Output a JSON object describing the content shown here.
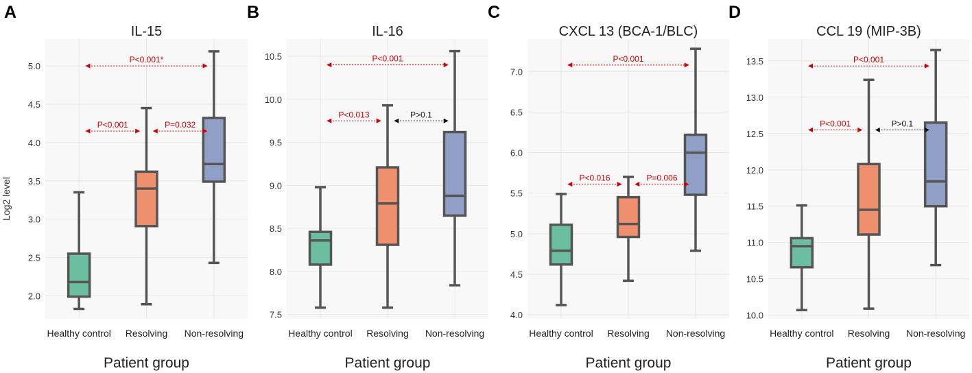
{
  "figure": {
    "ylabel": "Log2 level",
    "colors": {
      "healthy": "#6bbfa0",
      "resolving": "#ee8f6d",
      "nonresolving": "#8f9fc6",
      "box_edge": "#555555",
      "panel_bg": "#f8f8f8",
      "grid": "#e6e6e6",
      "annotation_red": "#d00000",
      "annotation_black": "#111111"
    }
  },
  "chart_data": [
    {
      "panel_letter": "A",
      "type": "box",
      "title": "IL-15",
      "xlabel": "Patient group",
      "ylabel": "Log2 level",
      "categories": [
        "Healthy control",
        "Resolving",
        "Non-resolving"
      ],
      "ylim": [
        1.7,
        5.35
      ],
      "yticks": [
        2.0,
        2.5,
        3.0,
        3.5,
        4.0,
        4.5,
        5.0
      ],
      "ytick_labels": [
        "2.0",
        "2.5",
        "3.0",
        "3.5",
        "4.0",
        "4.5",
        "5.0"
      ],
      "boxes": [
        {
          "min": 1.83,
          "q1": 1.99,
          "median": 2.18,
          "q3": 2.55,
          "max": 3.35
        },
        {
          "min": 1.89,
          "q1": 2.91,
          "median": 3.4,
          "q3": 3.62,
          "max": 4.45
        },
        {
          "min": 2.43,
          "q1": 3.49,
          "median": 3.72,
          "q3": 4.32,
          "max": 5.19
        }
      ],
      "comparisons": [
        {
          "from": 0,
          "to": 1,
          "y": 4.15,
          "label": "P<0.001",
          "color": "red"
        },
        {
          "from": 1,
          "to": 2,
          "y": 4.15,
          "label": "P=0.032",
          "color": "red"
        },
        {
          "from": 0,
          "to": 2,
          "y": 5.0,
          "label": "P<0.001*",
          "color": "red"
        }
      ]
    },
    {
      "panel_letter": "B",
      "type": "box",
      "title": "IL-16",
      "xlabel": "Patient group",
      "ylabel": "",
      "categories": [
        "Healthy control",
        "Resolving",
        "Non-resolving"
      ],
      "ylim": [
        7.45,
        10.7
      ],
      "yticks": [
        7.5,
        8.0,
        8.5,
        9.0,
        9.5,
        10.0,
        10.5
      ],
      "ytick_labels": [
        "7.5",
        "8.0",
        "8.5",
        "9.0",
        "9.5",
        "10.0",
        "10.5"
      ],
      "boxes": [
        {
          "min": 7.58,
          "q1": 8.08,
          "median": 8.36,
          "q3": 8.46,
          "max": 8.98
        },
        {
          "min": 7.58,
          "q1": 8.31,
          "median": 8.79,
          "q3": 9.21,
          "max": 9.93
        },
        {
          "min": 7.84,
          "q1": 8.65,
          "median": 8.88,
          "q3": 9.62,
          "max": 10.56
        }
      ],
      "comparisons": [
        {
          "from": 0,
          "to": 1,
          "y": 9.75,
          "label": "P<0.013",
          "color": "red"
        },
        {
          "from": 1,
          "to": 2,
          "y": 9.75,
          "label": "P>0.1",
          "color": "black"
        },
        {
          "from": 0,
          "to": 2,
          "y": 10.4,
          "label": "P<0.001",
          "color": "red"
        }
      ]
    },
    {
      "panel_letter": "C",
      "type": "box",
      "title": "CXCL 13 (BCA-1/BLC)",
      "xlabel": "Patient group",
      "ylabel": "",
      "categories": [
        "Healthy control",
        "Resolving",
        "Non-resolving"
      ],
      "ylim": [
        3.95,
        7.4
      ],
      "yticks": [
        4.0,
        4.5,
        5.0,
        5.5,
        6.0,
        6.5,
        7.0
      ],
      "ytick_labels": [
        "4.0",
        "4.5",
        "5.0",
        "5.5",
        "6.0",
        "6.5",
        "7.0"
      ],
      "boxes": [
        {
          "min": 4.12,
          "q1": 4.62,
          "median": 4.79,
          "q3": 5.11,
          "max": 5.49
        },
        {
          "min": 4.42,
          "q1": 4.96,
          "median": 5.12,
          "q3": 5.45,
          "max": 5.7
        },
        {
          "min": 4.79,
          "q1": 5.48,
          "median": 6.0,
          "q3": 6.22,
          "max": 7.28
        }
      ],
      "comparisons": [
        {
          "from": 0,
          "to": 1,
          "y": 5.61,
          "label": "P<0.016",
          "color": "red"
        },
        {
          "from": 1,
          "to": 2,
          "y": 5.61,
          "label": "P=0.006",
          "color": "red"
        },
        {
          "from": 0,
          "to": 2,
          "y": 7.08,
          "label": "P<0.001",
          "color": "red"
        }
      ]
    },
    {
      "panel_letter": "D",
      "type": "box",
      "title": "CCL 19 (MIP-3B)",
      "xlabel": "Patient group",
      "ylabel": "",
      "categories": [
        "Healthy control",
        "Resolving",
        "Non-resolving"
      ],
      "ylim": [
        9.95,
        13.8
      ],
      "yticks": [
        10.0,
        10.5,
        11.0,
        11.5,
        12.0,
        12.5,
        13.0,
        13.5
      ],
      "ytick_labels": [
        "10.0",
        "10.5",
        "11.0",
        "11.5",
        "12.0",
        "12.5",
        "13.0",
        "13.5"
      ],
      "boxes": [
        {
          "min": 10.07,
          "q1": 10.66,
          "median": 10.95,
          "q3": 11.06,
          "max": 11.51
        },
        {
          "min": 10.09,
          "q1": 11.11,
          "median": 11.45,
          "q3": 12.08,
          "max": 13.24
        },
        {
          "min": 10.69,
          "q1": 11.5,
          "median": 11.84,
          "q3": 12.65,
          "max": 13.65
        }
      ],
      "comparisons": [
        {
          "from": 0,
          "to": 1,
          "y": 12.55,
          "label": "P<0.001",
          "color": "red"
        },
        {
          "from": 1,
          "to": 2,
          "y": 12.55,
          "label": "P>0.1",
          "color": "black"
        },
        {
          "from": 0,
          "to": 2,
          "y": 13.43,
          "label": "P<0.001",
          "color": "red"
        }
      ]
    }
  ]
}
